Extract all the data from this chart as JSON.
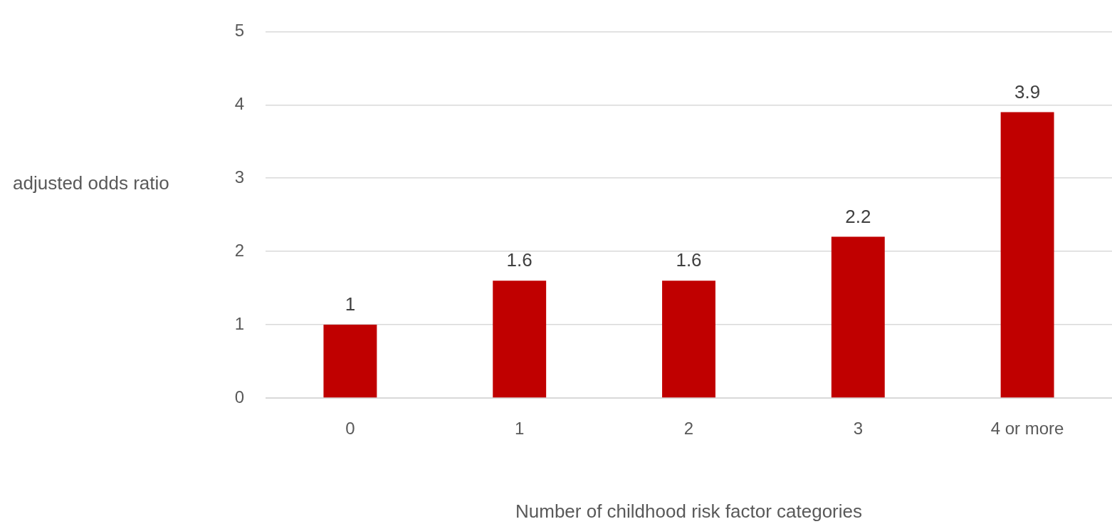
{
  "chart_data": {
    "type": "bar",
    "xlabel": "Number of childhood risk factor categories",
    "ylabel": "adjusted odds ratio",
    "categories": [
      "0",
      "1",
      "2",
      "3",
      "4 or more"
    ],
    "values": [
      1,
      1.6,
      1.6,
      2.2,
      3.9
    ],
    "color": "#c00000",
    "ylim": [
      0,
      5
    ],
    "yticks": [
      0,
      1,
      2,
      3,
      4,
      5
    ],
    "grid": "y",
    "legend": false,
    "data_labels": true
  }
}
